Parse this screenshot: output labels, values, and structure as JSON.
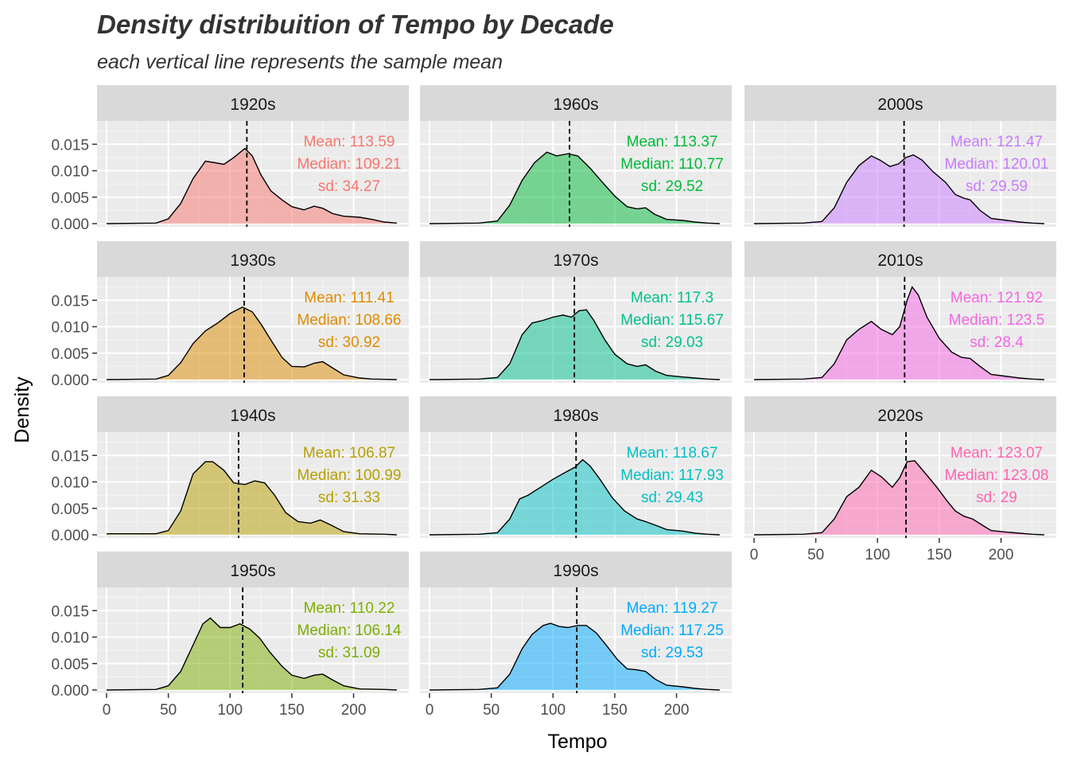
{
  "chart_data": {
    "type": "area",
    "title": "Density distribuition of Tempo by Decade",
    "subtitle": "each vertical line represents the sample mean",
    "xlabel": "Tempo",
    "ylabel": "Density",
    "xlim": [
      0,
      237
    ],
    "ylim": [
      0,
      0.0185
    ],
    "x_ticks": [
      0,
      50,
      100,
      150,
      200
    ],
    "y_ticks": [
      0.0,
      0.005,
      0.01,
      0.015
    ],
    "x_tick_labels": [
      "0",
      "50",
      "100",
      "150",
      "200"
    ],
    "y_tick_labels": [
      "0.000",
      "0.005",
      "0.010",
      "0.015"
    ],
    "grid": true,
    "legend": "none",
    "mean_line_style": "dashed black vertical line at sample mean",
    "panels": [
      {
        "decade": "1920s",
        "color": "#F8766D",
        "mean": 113.59,
        "stats": [
          "Mean: 113.59",
          "Median: 109.21",
          "sd: 34.27"
        ],
        "density": [
          [
            0,
            0
          ],
          [
            40,
            0.0001
          ],
          [
            50,
            0.0009
          ],
          [
            60,
            0.0038
          ],
          [
            70,
            0.0085
          ],
          [
            80,
            0.0118
          ],
          [
            88,
            0.0115
          ],
          [
            95,
            0.0112
          ],
          [
            103,
            0.0125
          ],
          [
            112,
            0.0142
          ],
          [
            118,
            0.0128
          ],
          [
            125,
            0.0092
          ],
          [
            133,
            0.0062
          ],
          [
            142,
            0.0045
          ],
          [
            150,
            0.0032
          ],
          [
            160,
            0.0026
          ],
          [
            168,
            0.0033
          ],
          [
            175,
            0.0029
          ],
          [
            183,
            0.0019
          ],
          [
            192,
            0.0014
          ],
          [
            205,
            0.0012
          ],
          [
            215,
            0.0008
          ],
          [
            225,
            0.0003
          ],
          [
            235,
            0.0001
          ]
        ]
      },
      {
        "decade": "1930s",
        "color": "#DE8C00",
        "mean": 111.41,
        "stats": [
          "Mean: 111.41",
          "Median: 108.66",
          "sd: 30.92"
        ],
        "density": [
          [
            0,
            0
          ],
          [
            40,
            0.0001
          ],
          [
            50,
            0.0008
          ],
          [
            60,
            0.0032
          ],
          [
            70,
            0.0068
          ],
          [
            80,
            0.0092
          ],
          [
            90,
            0.0107
          ],
          [
            100,
            0.0125
          ],
          [
            110,
            0.0137
          ],
          [
            118,
            0.0128
          ],
          [
            125,
            0.0105
          ],
          [
            133,
            0.0075
          ],
          [
            142,
            0.0042
          ],
          [
            150,
            0.0025
          ],
          [
            160,
            0.0024
          ],
          [
            168,
            0.0031
          ],
          [
            175,
            0.0034
          ],
          [
            183,
            0.0022
          ],
          [
            192,
            0.0009
          ],
          [
            205,
            0.0003
          ],
          [
            215,
            0.0001
          ],
          [
            235,
            0
          ]
        ]
      },
      {
        "decade": "1940s",
        "color": "#B79F00",
        "mean": 106.87,
        "stats": [
          "Mean: 106.87",
          "Median: 100.99",
          "sd: 31.33"
        ],
        "density": [
          [
            0,
            0.0002
          ],
          [
            40,
            0.0002
          ],
          [
            50,
            0.0008
          ],
          [
            60,
            0.0045
          ],
          [
            70,
            0.0115
          ],
          [
            80,
            0.0138
          ],
          [
            86,
            0.0138
          ],
          [
            95,
            0.0122
          ],
          [
            103,
            0.0098
          ],
          [
            112,
            0.0095
          ],
          [
            120,
            0.0102
          ],
          [
            128,
            0.0098
          ],
          [
            136,
            0.0075
          ],
          [
            145,
            0.0042
          ],
          [
            155,
            0.0025
          ],
          [
            165,
            0.0022
          ],
          [
            173,
            0.0028
          ],
          [
            182,
            0.0018
          ],
          [
            192,
            0.0006
          ],
          [
            205,
            0.0002
          ],
          [
            225,
            0.0001
          ],
          [
            235,
            0
          ]
        ]
      },
      {
        "decade": "1950s",
        "color": "#7CAE00",
        "mean": 110.22,
        "stats": [
          "Mean: 110.22",
          "Median: 106.14",
          "sd: 31.09"
        ],
        "density": [
          [
            0,
            0
          ],
          [
            40,
            0.0001
          ],
          [
            50,
            0.0008
          ],
          [
            60,
            0.0035
          ],
          [
            70,
            0.0085
          ],
          [
            78,
            0.0125
          ],
          [
            84,
            0.0136
          ],
          [
            92,
            0.0118
          ],
          [
            100,
            0.0118
          ],
          [
            108,
            0.0125
          ],
          [
            116,
            0.0115
          ],
          [
            124,
            0.0098
          ],
          [
            132,
            0.0072
          ],
          [
            142,
            0.0045
          ],
          [
            150,
            0.0028
          ],
          [
            160,
            0.0022
          ],
          [
            168,
            0.0028
          ],
          [
            175,
            0.003
          ],
          [
            183,
            0.0019
          ],
          [
            192,
            0.0008
          ],
          [
            205,
            0.0002
          ],
          [
            225,
            0.0001
          ],
          [
            235,
            0
          ]
        ]
      },
      {
        "decade": "1960s",
        "color": "#00BA38",
        "mean": 113.37,
        "stats": [
          "Mean: 113.37",
          "Median: 110.77",
          "sd: 29.52"
        ],
        "density": [
          [
            0,
            0
          ],
          [
            40,
            0.0001
          ],
          [
            55,
            0.0005
          ],
          [
            65,
            0.0035
          ],
          [
            75,
            0.0082
          ],
          [
            85,
            0.0115
          ],
          [
            95,
            0.0135
          ],
          [
            103,
            0.0128
          ],
          [
            112,
            0.0132
          ],
          [
            120,
            0.0128
          ],
          [
            130,
            0.0105
          ],
          [
            140,
            0.0078
          ],
          [
            150,
            0.0052
          ],
          [
            160,
            0.0032
          ],
          [
            168,
            0.0028
          ],
          [
            175,
            0.003
          ],
          [
            182,
            0.0018
          ],
          [
            192,
            0.0008
          ],
          [
            205,
            0.0006
          ],
          [
            215,
            0.0003
          ],
          [
            225,
            0.0001
          ],
          [
            235,
            0
          ]
        ]
      },
      {
        "decade": "1970s",
        "color": "#00C08B",
        "mean": 117.3,
        "stats": [
          "Mean: 117.3",
          "Median: 115.67",
          "sd: 29.03"
        ],
        "density": [
          [
            0,
            0
          ],
          [
            40,
            0.0001
          ],
          [
            55,
            0.0004
          ],
          [
            65,
            0.003
          ],
          [
            75,
            0.0085
          ],
          [
            83,
            0.0107
          ],
          [
            92,
            0.0112
          ],
          [
            100,
            0.0118
          ],
          [
            108,
            0.0122
          ],
          [
            115,
            0.0118
          ],
          [
            121,
            0.013
          ],
          [
            127,
            0.0132
          ],
          [
            133,
            0.0112
          ],
          [
            142,
            0.0075
          ],
          [
            150,
            0.0048
          ],
          [
            160,
            0.003
          ],
          [
            168,
            0.0025
          ],
          [
            175,
            0.0028
          ],
          [
            183,
            0.0016
          ],
          [
            192,
            0.0008
          ],
          [
            205,
            0.0005
          ],
          [
            215,
            0.0003
          ],
          [
            225,
            0.0001
          ],
          [
            235,
            0
          ]
        ]
      },
      {
        "decade": "1980s",
        "color": "#00BFC4",
        "mean": 118.67,
        "stats": [
          "Mean: 118.67",
          "Median: 117.93",
          "sd: 29.43"
        ],
        "density": [
          [
            0,
            0
          ],
          [
            40,
            0.0001
          ],
          [
            55,
            0.0004
          ],
          [
            65,
            0.003
          ],
          [
            73,
            0.0068
          ],
          [
            80,
            0.0075
          ],
          [
            90,
            0.009
          ],
          [
            100,
            0.0105
          ],
          [
            110,
            0.0118
          ],
          [
            118,
            0.0128
          ],
          [
            124,
            0.0142
          ],
          [
            130,
            0.013
          ],
          [
            138,
            0.0105
          ],
          [
            148,
            0.007
          ],
          [
            158,
            0.0045
          ],
          [
            168,
            0.003
          ],
          [
            175,
            0.0025
          ],
          [
            183,
            0.0018
          ],
          [
            192,
            0.001
          ],
          [
            205,
            0.0007
          ],
          [
            215,
            0.0003
          ],
          [
            225,
            0.0001
          ],
          [
            235,
            0
          ]
        ]
      },
      {
        "decade": "1990s",
        "color": "#00A9FF",
        "mean": 119.27,
        "stats": [
          "Mean: 119.27",
          "Median: 117.25",
          "sd: 29.53"
        ],
        "density": [
          [
            0,
            0
          ],
          [
            40,
            0.0001
          ],
          [
            55,
            0.0004
          ],
          [
            65,
            0.003
          ],
          [
            75,
            0.0078
          ],
          [
            83,
            0.0105
          ],
          [
            92,
            0.0122
          ],
          [
            98,
            0.0126
          ],
          [
            105,
            0.012
          ],
          [
            112,
            0.0118
          ],
          [
            120,
            0.0122
          ],
          [
            127,
            0.0122
          ],
          [
            135,
            0.0108
          ],
          [
            143,
            0.0085
          ],
          [
            152,
            0.0058
          ],
          [
            160,
            0.004
          ],
          [
            168,
            0.0038
          ],
          [
            175,
            0.0035
          ],
          [
            183,
            0.002
          ],
          [
            192,
            0.0009
          ],
          [
            205,
            0.0006
          ],
          [
            215,
            0.0003
          ],
          [
            225,
            0.0001
          ],
          [
            235,
            0
          ]
        ]
      },
      {
        "decade": "2000s",
        "color": "#C77CFF",
        "mean": 121.47,
        "stats": [
          "Mean: 121.47",
          "Median: 120.01",
          "sd: 29.59"
        ],
        "density": [
          [
            0,
            0
          ],
          [
            40,
            0.0001
          ],
          [
            55,
            0.0004
          ],
          [
            65,
            0.003
          ],
          [
            75,
            0.0078
          ],
          [
            85,
            0.011
          ],
          [
            95,
            0.0128
          ],
          [
            102,
            0.012
          ],
          [
            110,
            0.0108
          ],
          [
            117,
            0.0113
          ],
          [
            123,
            0.0125
          ],
          [
            129,
            0.013
          ],
          [
            136,
            0.012
          ],
          [
            145,
            0.0098
          ],
          [
            155,
            0.0078
          ],
          [
            163,
            0.0055
          ],
          [
            170,
            0.0048
          ],
          [
            175,
            0.0045
          ],
          [
            183,
            0.0025
          ],
          [
            192,
            0.001
          ],
          [
            205,
            0.0006
          ],
          [
            215,
            0.0003
          ],
          [
            225,
            0.0001
          ],
          [
            235,
            0
          ]
        ]
      },
      {
        "decade": "2010s",
        "color": "#F564E3",
        "mean": 121.92,
        "stats": [
          "Mean: 121.92",
          "Median: 123.5",
          "sd: 28.4"
        ],
        "density": [
          [
            0,
            0
          ],
          [
            40,
            0.0001
          ],
          [
            55,
            0.0004
          ],
          [
            65,
            0.003
          ],
          [
            75,
            0.0075
          ],
          [
            85,
            0.0095
          ],
          [
            95,
            0.011
          ],
          [
            103,
            0.0095
          ],
          [
            112,
            0.0085
          ],
          [
            118,
            0.01
          ],
          [
            124,
            0.015
          ],
          [
            128,
            0.0175
          ],
          [
            133,
            0.016
          ],
          [
            140,
            0.0118
          ],
          [
            150,
            0.0078
          ],
          [
            160,
            0.0052
          ],
          [
            168,
            0.0042
          ],
          [
            175,
            0.004
          ],
          [
            183,
            0.0025
          ],
          [
            192,
            0.001
          ],
          [
            205,
            0.0006
          ],
          [
            215,
            0.0003
          ],
          [
            225,
            0.0001
          ],
          [
            235,
            0
          ]
        ]
      },
      {
        "decade": "2020s",
        "color": "#FF64B0",
        "mean": 123.07,
        "stats": [
          "Mean: 123.07",
          "Median: 123.08",
          "sd: 29"
        ],
        "density": [
          [
            0,
            0
          ],
          [
            40,
            0.0001
          ],
          [
            55,
            0.0004
          ],
          [
            65,
            0.003
          ],
          [
            75,
            0.0072
          ],
          [
            85,
            0.009
          ],
          [
            95,
            0.0122
          ],
          [
            103,
            0.011
          ],
          [
            112,
            0.009
          ],
          [
            118,
            0.0108
          ],
          [
            124,
            0.0138
          ],
          [
            130,
            0.014
          ],
          [
            138,
            0.0118
          ],
          [
            148,
            0.009
          ],
          [
            156,
            0.0065
          ],
          [
            163,
            0.0045
          ],
          [
            170,
            0.0035
          ],
          [
            177,
            0.003
          ],
          [
            185,
            0.0018
          ],
          [
            192,
            0.0008
          ],
          [
            205,
            0.0005
          ],
          [
            215,
            0.0003
          ],
          [
            225,
            0.0001
          ],
          [
            235,
            0
          ]
        ]
      }
    ]
  }
}
